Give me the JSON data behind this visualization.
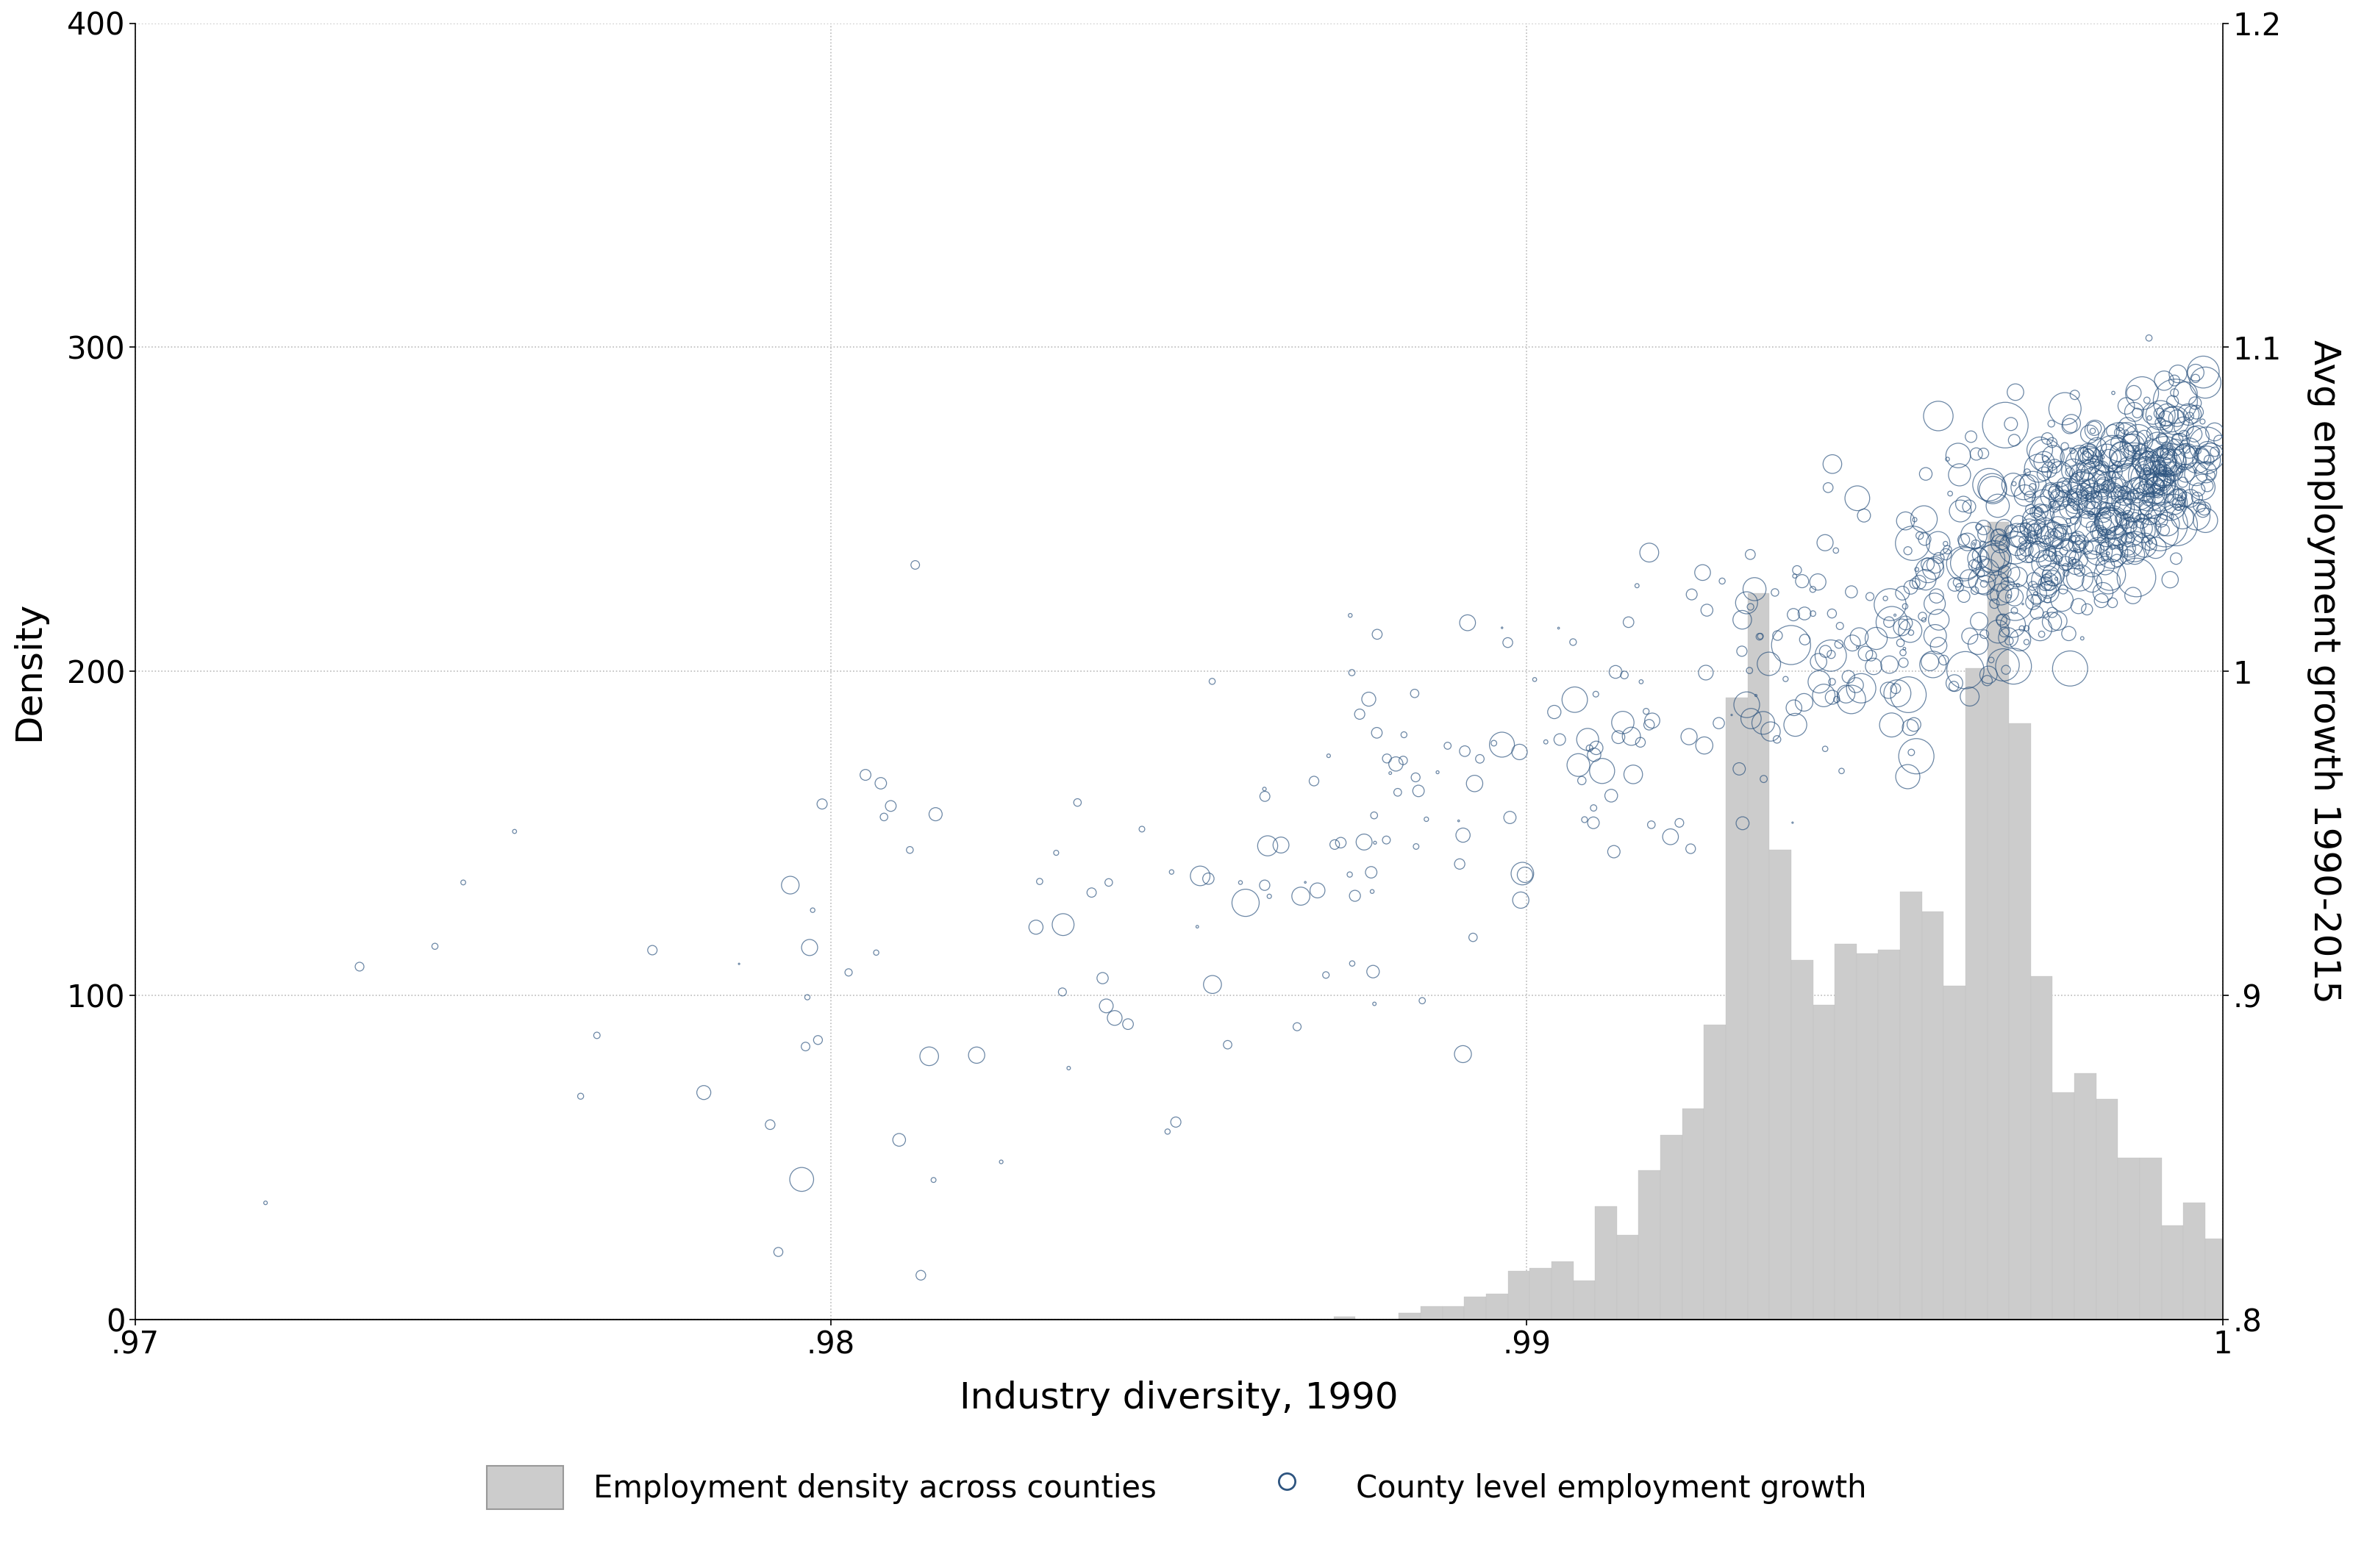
{
  "xlabel": "Industry diversity, 1990",
  "ylabel_left": "Density",
  "ylabel_right": "Avg employment growth 1990-2015",
  "xlim": [
    0.97,
    1.0
  ],
  "ylim_left": [
    0,
    400
  ],
  "ylim_right": [
    0.8,
    1.2
  ],
  "xticks": [
    0.97,
    0.98,
    0.99,
    1.0
  ],
  "xtick_labels": [
    ".97",
    ".98",
    ".99",
    "1"
  ],
  "yticks_left": [
    0,
    100,
    200,
    300,
    400
  ],
  "ytick_labels_left": [
    "0",
    "100",
    "200",
    "300",
    "400"
  ],
  "yticks_right": [
    0.8,
    0.9,
    1.0,
    1.1,
    1.2
  ],
  "ytick_labels_right": [
    ".8",
    ".9",
    "1",
    "1.1",
    "1.2"
  ],
  "scatter_color": "#2E5580",
  "hist_color": "#CCCCCC",
  "hist_edgecolor": "#BBBBBB",
  "background_color": "#FFFFFF",
  "grid_color": "#BBBBBB",
  "legend_hist_label": "Employment density across counties",
  "legend_scatter_label": "County level employment growth",
  "seed": 42,
  "n_scatter": 900,
  "n_hist": 3100
}
